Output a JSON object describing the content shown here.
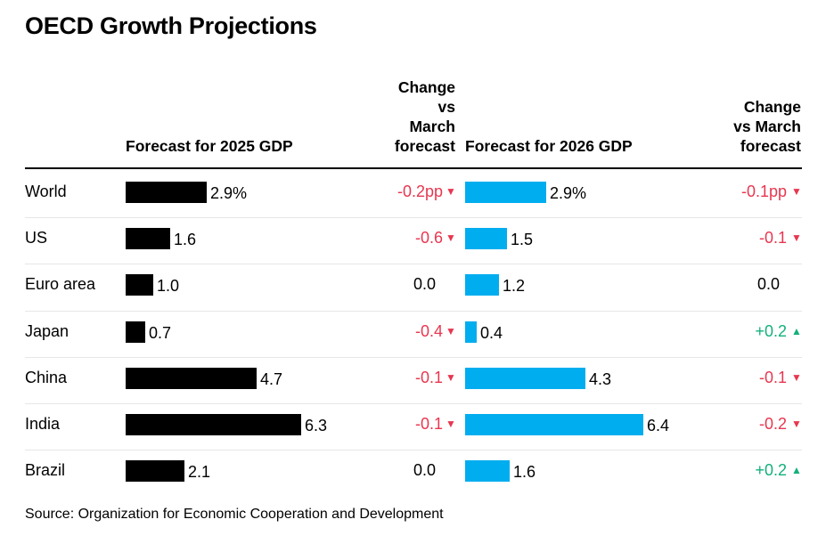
{
  "title": "OECD Growth Projections",
  "source": "Source: Organization for Economic Cooperation and Development",
  "colors": {
    "bar2025": "#000000",
    "bar2026": "#00adef",
    "negative": "#e8364f",
    "positive": "#13b07b",
    "neutral": "#000000"
  },
  "headers": {
    "col1": "Forecast for 2025 GDP",
    "col2": [
      "Change",
      "vs",
      "March",
      "forecast"
    ],
    "col3": "Forecast for 2026 GDP",
    "col4": [
      "Change",
      "vs March",
      "forecast"
    ]
  },
  "chart_data": {
    "type": "bar",
    "categories": [
      "World",
      "US",
      "Euro area",
      "Japan",
      "China",
      "India",
      "Brazil"
    ],
    "series": [
      {
        "name": "Forecast for 2025 GDP",
        "values": [
          2.9,
          1.6,
          1.0,
          0.7,
          4.7,
          6.3,
          2.1
        ],
        "labels": [
          "2.9%",
          "1.6",
          "1.0",
          "0.7",
          "4.7",
          "6.3",
          "2.1"
        ],
        "change_labels": [
          "-0.2pp",
          "-0.6",
          "0.0",
          "-0.4",
          "-0.1",
          "-0.1",
          "0.0"
        ],
        "change_direction": [
          "down",
          "down",
          "none",
          "down",
          "down",
          "down",
          "none"
        ]
      },
      {
        "name": "Forecast for 2026 GDP",
        "values": [
          2.9,
          1.5,
          1.2,
          0.4,
          4.3,
          6.4,
          1.6
        ],
        "labels": [
          "2.9%",
          "1.5",
          "1.2",
          "0.4",
          "4.3",
          "6.4",
          "1.6"
        ],
        "change_labels": [
          "-0.1pp",
          "-0.1",
          "0.0",
          "+0.2",
          "-0.1",
          "-0.2",
          "+0.2"
        ],
        "change_direction": [
          "down",
          "down",
          "none",
          "up",
          "down",
          "down",
          "up"
        ]
      }
    ],
    "arrow_glyphs": {
      "down": "▼",
      "up": "▲"
    }
  }
}
